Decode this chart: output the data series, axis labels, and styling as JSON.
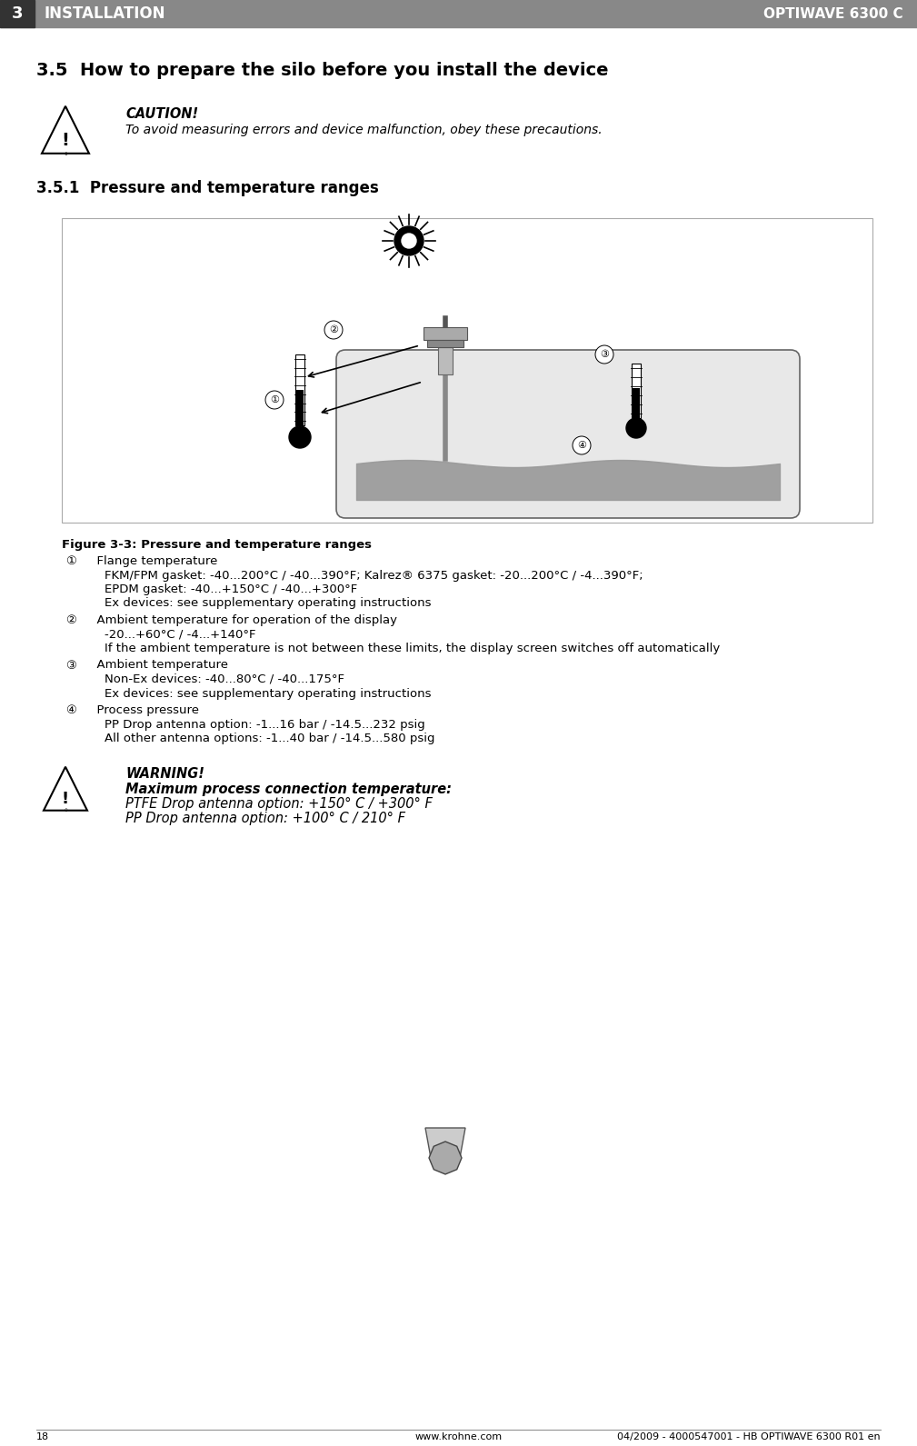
{
  "header_left_number": "3",
  "header_left_text": "INSTALLATION",
  "header_right_text": "OPTIWAVE 6300 C",
  "header_bg_color": "#888888",
  "header_number_bg": "#444444",
  "page_bg": "#ffffff",
  "section_title": "3.5  How to prepare the silo before you install the device",
  "subsection_title": "3.5.1  Pressure and temperature ranges",
  "caution_label": "CAUTION!",
  "caution_text": "To avoid measuring errors and device malfunction, obey these precautions.",
  "figure_label": "Figure 3-3: Pressure and temperature ranges",
  "body_items": [
    {
      "num": "①",
      "title": "  Flange temperature",
      "lines": [
        "    FKM/FPM gasket: -40...200°C / -40...390°F; Kalrez® 6375 gasket: -20...200°C / -4...390°F;",
        "    EPDM gasket: -40...+150°C / -40...+300°F",
        "    Ex devices: see supplementary operating instructions"
      ]
    },
    {
      "num": "②",
      "title": "  Ambient temperature for operation of the display",
      "lines": [
        "    -20...+60°C / -4...+140°F",
        "    If the ambient temperature is not between these limits, the display screen switches off automatically"
      ]
    },
    {
      "num": "③",
      "title": "  Ambient temperature",
      "lines": [
        "    Non-Ex devices: -40...80°C / -40...175°F",
        "    Ex devices: see supplementary operating instructions"
      ]
    },
    {
      "num": "④",
      "title": "  Process pressure",
      "lines": [
        "    PP Drop antenna option: -1...16 bar / -14.5...232 psig",
        "    All other antenna options: -1...40 bar / -14.5...580 psig"
      ]
    }
  ],
  "warning_label": "WARNING!",
  "warning_line0": "Maximum process connection temperature:",
  "warning_lines": [
    "PTFE Drop antenna option: +150° C / +300° F",
    "PP Drop antenna option: +100° C / 210° F"
  ],
  "footer_page": "18",
  "footer_url": "www.krohne.com",
  "footer_doc": "04/2009 - 4000547001 - HB OPTIWAVE 6300 R01 en"
}
